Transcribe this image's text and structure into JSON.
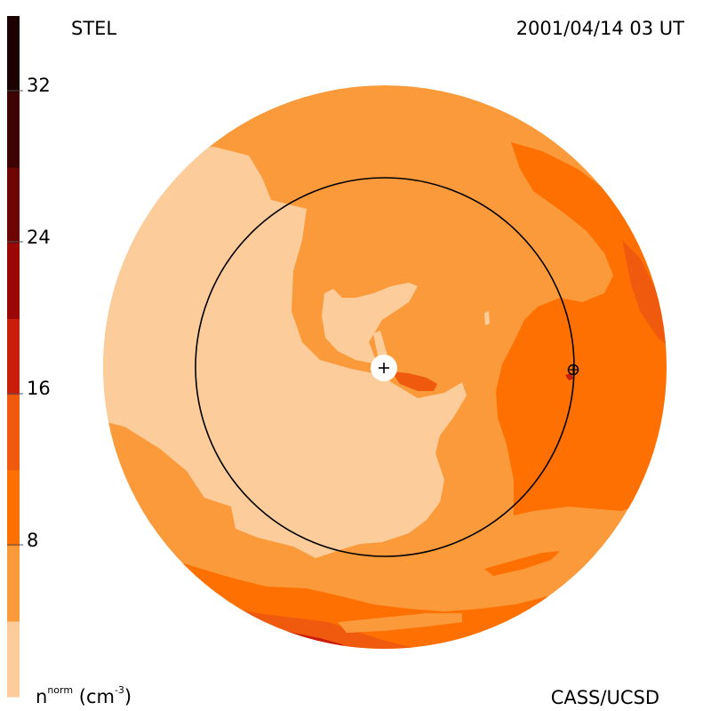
{
  "header": {
    "label_left": "STEL",
    "label_right": "2001/04/14 03 UT"
  },
  "footer": {
    "credit": "CASS/UCSD",
    "unit_symbol": "n",
    "unit_superscript": "norm",
    "unit_text": "(cm",
    "unit_exponent": "-3",
    "unit_close": ")"
  },
  "colorbar": {
    "tick_labels": [
      "32",
      "24",
      "16",
      "8"
    ],
    "colors": [
      "#fccc9a",
      "#fb9a3a",
      "#fe7001",
      "#f05a0e",
      "#c91e0c",
      "#9b0707",
      "#6d0505",
      "#3e0303",
      "#1c0101"
    ]
  },
  "map": {
    "colors": {
      "pale": "#fccc9a",
      "light_orange": "#fb9a3a",
      "orange": "#fe7001",
      "dark_orange": "#f05a0e",
      "red": "#c91e0c"
    }
  }
}
